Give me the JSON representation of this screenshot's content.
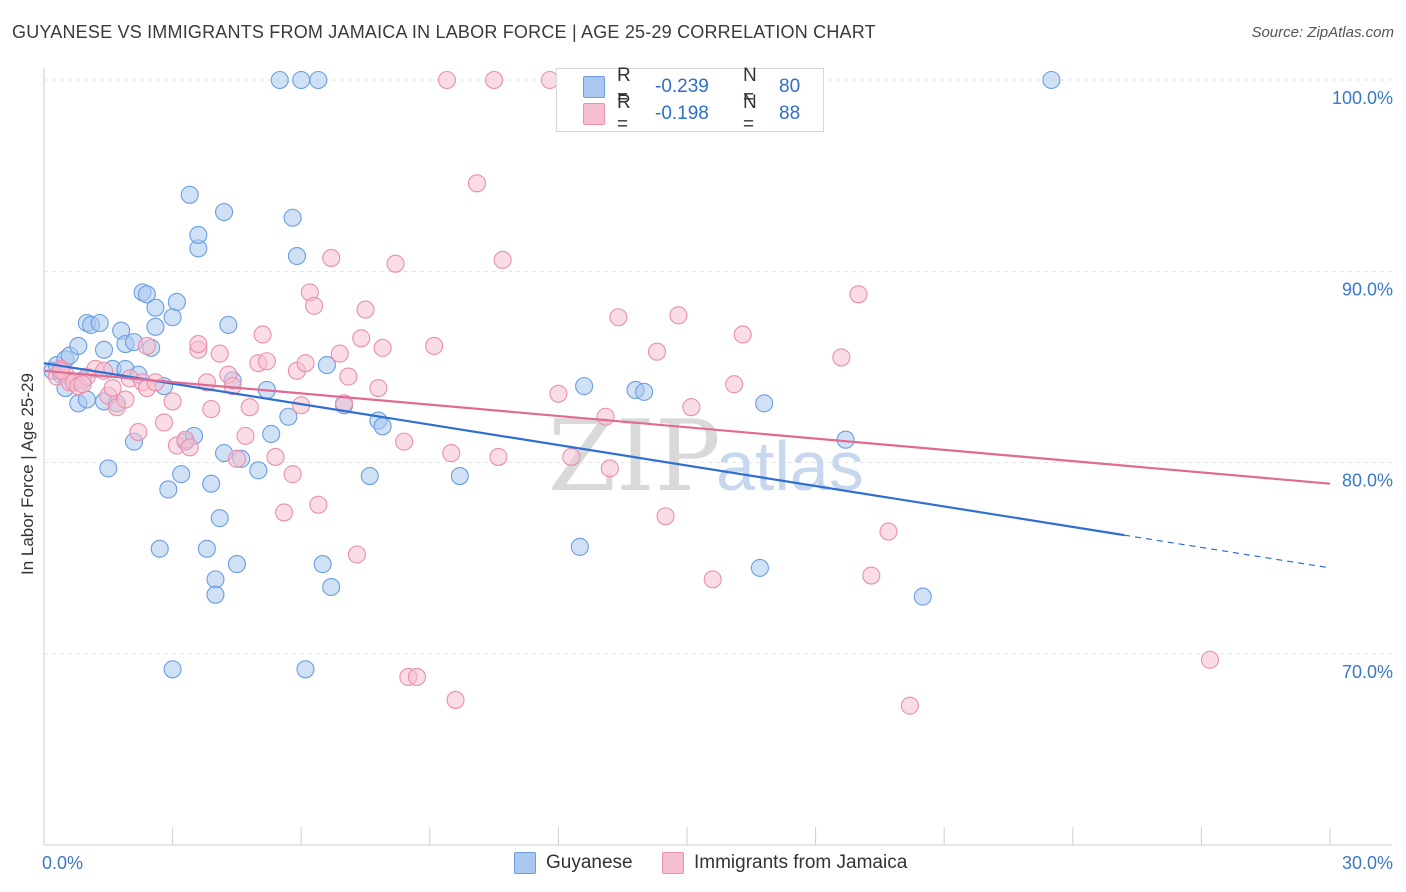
{
  "header": {
    "title": "GUYANESE VS IMMIGRANTS FROM JAMAICA IN LABOR FORCE | AGE 25-29 CORRELATION CHART",
    "source": "Source: ZipAtlas.com"
  },
  "watermark": {
    "zip": "ZIP",
    "atlas": "atlas"
  },
  "legend_top": {
    "rows": [
      {
        "r_label": "R =",
        "r_value": "-0.239",
        "n_label": "N =",
        "n_value": "80"
      },
      {
        "r_label": "R =",
        "r_value": "-0.198",
        "n_label": "N =",
        "n_value": "88"
      }
    ]
  },
  "legend_bottom": {
    "items": [
      "Guyanese",
      "Immigrants from Jamaica"
    ]
  },
  "colors": {
    "blue_fill": "#aac8ef",
    "blue_stroke": "#6a9ee0",
    "blue_line": "#2f6fd0",
    "pink_fill": "#f6bfd0",
    "pink_stroke": "#eb8fab",
    "pink_line": "#e16a93",
    "axis_text": "#3a78c9",
    "grid": "#e3e3e3"
  },
  "chart_data": {
    "type": "scatter",
    "title": "GUYANESE VS IMMIGRANTS FROM JAMAICA IN LABOR FORCE | AGE 25-29 CORRELATION CHART",
    "xlabel": "",
    "ylabel": "In Labor Force | Age 25-29",
    "xlim": [
      0,
      30
    ],
    "ylim": [
      60,
      101.5
    ],
    "x_tick_labels": [
      {
        "value": 0,
        "label": "0.0%"
      },
      {
        "value": 30,
        "label": "30.0%"
      }
    ],
    "y_tick_labels": [
      {
        "value": 100,
        "label": "100.0%"
      },
      {
        "value": 90,
        "label": "90.0%"
      },
      {
        "value": 80,
        "label": "80.0%"
      },
      {
        "value": 70,
        "label": "70.0%"
      }
    ],
    "series": [
      {
        "name": "Guyanese",
        "R": -0.239,
        "N": 80,
        "trend": {
          "x0": 0,
          "y0": 85.2,
          "x1": 30,
          "y1": 74.5,
          "solid_until": 25.2
        },
        "points": [
          [
            0.2,
            84.8
          ],
          [
            0.3,
            85.1
          ],
          [
            0.4,
            84.6
          ],
          [
            0.5,
            85.4
          ],
          [
            0.5,
            83.9
          ],
          [
            0.6,
            85.6
          ],
          [
            0.7,
            84.2
          ],
          [
            0.8,
            86.1
          ],
          [
            0.8,
            83.1
          ],
          [
            0.9,
            84.3
          ],
          [
            1.0,
            87.3
          ],
          [
            1.0,
            83.3
          ],
          [
            1.1,
            87.2
          ],
          [
            1.3,
            87.3
          ],
          [
            1.4,
            85.9
          ],
          [
            1.4,
            83.2
          ],
          [
            1.5,
            79.7
          ],
          [
            1.6,
            84.9
          ],
          [
            1.7,
            83.1
          ],
          [
            1.8,
            86.9
          ],
          [
            1.9,
            84.9
          ],
          [
            1.9,
            86.2
          ],
          [
            2.1,
            86.3
          ],
          [
            2.1,
            81.1
          ],
          [
            2.2,
            84.6
          ],
          [
            2.3,
            88.9
          ],
          [
            2.4,
            88.8
          ],
          [
            2.5,
            86.0
          ],
          [
            2.6,
            87.1
          ],
          [
            2.6,
            88.1
          ],
          [
            2.7,
            75.5
          ],
          [
            2.8,
            84.0
          ],
          [
            2.9,
            78.6
          ],
          [
            3.0,
            69.2
          ],
          [
            3.0,
            87.6
          ],
          [
            3.1,
            88.4
          ],
          [
            3.2,
            79.4
          ],
          [
            3.3,
            81.1
          ],
          [
            3.4,
            94.0
          ],
          [
            3.5,
            81.4
          ],
          [
            3.6,
            91.2
          ],
          [
            3.6,
            91.9
          ],
          [
            3.8,
            75.5
          ],
          [
            3.9,
            78.9
          ],
          [
            4.0,
            73.9
          ],
          [
            4.0,
            73.1
          ],
          [
            4.1,
            77.1
          ],
          [
            4.2,
            93.1
          ],
          [
            4.2,
            80.5
          ],
          [
            4.3,
            87.2
          ],
          [
            4.4,
            84.3
          ],
          [
            4.5,
            74.7
          ],
          [
            4.6,
            80.2
          ],
          [
            5.0,
            79.6
          ],
          [
            5.2,
            83.8
          ],
          [
            5.3,
            81.5
          ],
          [
            5.5,
            100.0
          ],
          [
            5.7,
            82.4
          ],
          [
            5.8,
            92.8
          ],
          [
            5.9,
            90.8
          ],
          [
            6.0,
            100.0
          ],
          [
            6.1,
            69.2
          ],
          [
            6.4,
            100.0
          ],
          [
            6.5,
            74.7
          ],
          [
            6.6,
            85.1
          ],
          [
            6.7,
            73.5
          ],
          [
            7.0,
            83.0
          ],
          [
            7.6,
            79.3
          ],
          [
            7.8,
            82.2
          ],
          [
            7.9,
            81.9
          ],
          [
            9.7,
            79.3
          ],
          [
            12.5,
            75.6
          ],
          [
            12.6,
            84.0
          ],
          [
            13.8,
            83.8
          ],
          [
            14.0,
            83.7
          ],
          [
            16.7,
            74.5
          ],
          [
            16.8,
            83.1
          ],
          [
            18.7,
            81.2
          ],
          [
            20.5,
            73.0
          ],
          [
            23.5,
            100.0
          ]
        ]
      },
      {
        "name": "Immigrants from Jamaica",
        "R": -0.198,
        "N": 88,
        "trend": {
          "x0": 0,
          "y0": 84.8,
          "x1": 30,
          "y1": 78.9
        },
        "points": [
          [
            0.3,
            84.5
          ],
          [
            0.4,
            84.9
          ],
          [
            0.5,
            84.6
          ],
          [
            0.6,
            84.2
          ],
          [
            0.7,
            84.2
          ],
          [
            0.8,
            84.0
          ],
          [
            1.0,
            84.5
          ],
          [
            1.2,
            84.9
          ],
          [
            1.4,
            84.8
          ],
          [
            1.5,
            83.5
          ],
          [
            1.6,
            83.9
          ],
          [
            1.7,
            82.9
          ],
          [
            1.9,
            83.3
          ],
          [
            2.0,
            84.4
          ],
          [
            2.2,
            81.6
          ],
          [
            2.3,
            84.2
          ],
          [
            2.4,
            86.1
          ],
          [
            2.4,
            83.9
          ],
          [
            2.6,
            84.2
          ],
          [
            2.8,
            82.1
          ],
          [
            3.0,
            83.2
          ],
          [
            3.1,
            80.9
          ],
          [
            3.3,
            81.2
          ],
          [
            3.4,
            80.8
          ],
          [
            3.6,
            85.9
          ],
          [
            3.6,
            86.2
          ],
          [
            3.8,
            84.2
          ],
          [
            3.9,
            82.8
          ],
          [
            4.1,
            85.7
          ],
          [
            4.3,
            84.6
          ],
          [
            4.4,
            84.0
          ],
          [
            4.5,
            80.2
          ],
          [
            4.7,
            81.4
          ],
          [
            4.8,
            82.9
          ],
          [
            5.0,
            85.2
          ],
          [
            5.1,
            86.7
          ],
          [
            5.2,
            85.3
          ],
          [
            5.4,
            80.3
          ],
          [
            5.6,
            77.4
          ],
          [
            5.8,
            79.4
          ],
          [
            5.9,
            84.8
          ],
          [
            6.0,
            83.0
          ],
          [
            6.1,
            85.2
          ],
          [
            6.2,
            88.9
          ],
          [
            6.3,
            88.2
          ],
          [
            6.4,
            77.8
          ],
          [
            6.7,
            90.7
          ],
          [
            6.9,
            85.7
          ],
          [
            7.0,
            83.1
          ],
          [
            7.1,
            84.5
          ],
          [
            7.3,
            75.2
          ],
          [
            7.4,
            86.5
          ],
          [
            7.5,
            88.0
          ],
          [
            7.8,
            83.9
          ],
          [
            7.9,
            86.0
          ],
          [
            8.2,
            90.4
          ],
          [
            8.4,
            81.1
          ],
          [
            8.5,
            68.8
          ],
          [
            8.7,
            68.8
          ],
          [
            9.1,
            86.1
          ],
          [
            9.4,
            100.0
          ],
          [
            9.5,
            80.5
          ],
          [
            9.6,
            67.6
          ],
          [
            10.1,
            94.6
          ],
          [
            10.5,
            100.0
          ],
          [
            10.6,
            80.3
          ],
          [
            10.7,
            90.6
          ],
          [
            11.8,
            100.0
          ],
          [
            12.0,
            83.6
          ],
          [
            12.3,
            80.3
          ],
          [
            13.1,
            82.4
          ],
          [
            13.2,
            79.7
          ],
          [
            13.4,
            87.6
          ],
          [
            14.3,
            85.8
          ],
          [
            14.5,
            77.2
          ],
          [
            14.8,
            87.7
          ],
          [
            15.1,
            82.9
          ],
          [
            15.6,
            73.9
          ],
          [
            16.1,
            84.1
          ],
          [
            16.3,
            86.7
          ],
          [
            18.6,
            85.5
          ],
          [
            19.0,
            88.8
          ],
          [
            19.3,
            74.1
          ],
          [
            19.7,
            76.4
          ],
          [
            20.2,
            67.3
          ],
          [
            27.2,
            69.7
          ],
          [
            0.4,
            84.8
          ],
          [
            0.9,
            84.1
          ]
        ]
      }
    ]
  }
}
